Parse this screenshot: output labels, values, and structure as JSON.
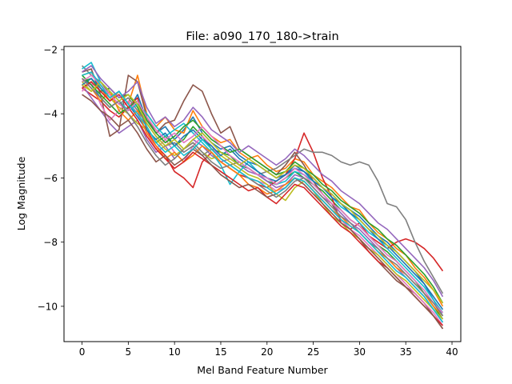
{
  "chart_data": {
    "type": "line",
    "title": "File: a090_170_180->train",
    "xlabel": "Mel Band Feature Number",
    "ylabel": "Log Magnitude",
    "xlim": [
      -1.95,
      40.95
    ],
    "ylim": [
      -11.1,
      -1.9
    ],
    "x_ticks": [
      0,
      5,
      10,
      15,
      20,
      25,
      30,
      35,
      40
    ],
    "y_ticks": [
      -2,
      -4,
      -6,
      -8,
      -10
    ],
    "x_tick_labels": [
      "0",
      "5",
      "10",
      "15",
      "20",
      "25",
      "30",
      "35",
      "40"
    ],
    "y_tick_labels": [
      "−2",
      "−4",
      "−6",
      "−8",
      "−10"
    ],
    "grid": false,
    "legend": "none",
    "colors": [
      "#1f77b4",
      "#ff7f0e",
      "#2ca02c",
      "#d62728",
      "#9467bd",
      "#8c564b",
      "#e377c2",
      "#7f7f7f",
      "#bcbd22",
      "#17becf"
    ],
    "x": [
      0,
      1,
      2,
      3,
      4,
      5,
      6,
      7,
      8,
      9,
      10,
      11,
      12,
      13,
      14,
      15,
      16,
      17,
      18,
      19,
      20,
      21,
      22,
      23,
      24,
      25,
      26,
      27,
      28,
      29,
      30,
      31,
      32,
      33,
      34,
      35,
      36,
      37,
      38,
      39
    ],
    "series": [
      {
        "values": [
          -2.9,
          -3.1,
          -3.5,
          -3.8,
          -3.6,
          -3.9,
          -3.4,
          -4.2,
          -4.6,
          -4.4,
          -4.8,
          -4.5,
          -4.1,
          -4.6,
          -4.9,
          -5.1,
          -5.0,
          -5.3,
          -5.5,
          -5.6,
          -5.8,
          -6.0,
          -5.9,
          -5.6,
          -5.8,
          -6.0,
          -6.3,
          -6.5,
          -6.8,
          -7.0,
          -7.2,
          -7.5,
          -7.8,
          -8.0,
          -8.3,
          -8.6,
          -8.9,
          -9.3,
          -9.8,
          -10.3
        ]
      },
      {
        "values": [
          -2.8,
          -2.7,
          -3.2,
          -3.6,
          -3.3,
          -3.7,
          -2.8,
          -4.0,
          -4.4,
          -4.1,
          -4.5,
          -4.6,
          -3.9,
          -4.4,
          -4.7,
          -4.9,
          -4.8,
          -5.2,
          -5.4,
          -5.3,
          -5.6,
          -5.8,
          -5.7,
          -5.4,
          -5.5,
          -5.9,
          -6.1,
          -6.3,
          -6.6,
          -6.9,
          -7.0,
          -7.4,
          -7.7,
          -7.9,
          -8.2,
          -8.4,
          -8.8,
          -9.1,
          -9.5,
          -10.0
        ]
      },
      {
        "values": [
          -3.0,
          -2.9,
          -3.3,
          -3.2,
          -3.5,
          -3.4,
          -3.8,
          -4.4,
          -4.9,
          -4.7,
          -5.0,
          -4.8,
          -4.4,
          -4.7,
          -5.1,
          -5.2,
          -5.3,
          -5.6,
          -5.7,
          -5.9,
          -6.1,
          -6.2,
          -6.0,
          -5.8,
          -6.0,
          -6.2,
          -6.4,
          -6.7,
          -7.0,
          -7.3,
          -7.5,
          -7.8,
          -8.1,
          -8.3,
          -8.6,
          -8.9,
          -9.2,
          -9.6,
          -10.0,
          -10.4
        ]
      },
      {
        "values": [
          -3.2,
          -3.4,
          -3.6,
          -3.9,
          -4.1,
          -3.8,
          -3.5,
          -4.5,
          -5.0,
          -5.3,
          -5.8,
          -6.0,
          -6.3,
          -5.5,
          -5.2,
          -5.5,
          -5.7,
          -5.9,
          -6.0,
          -6.2,
          -6.3,
          -6.1,
          -5.9,
          -5.4,
          -4.6,
          -5.2,
          -6.0,
          -6.6,
          -7.4,
          -7.6,
          -7.4,
          -7.8,
          -8.0,
          -8.2,
          -8.0,
          -7.9,
          -8.0,
          -8.2,
          -8.5,
          -8.9
        ]
      },
      {
        "values": [
          -3.1,
          -3.5,
          -3.9,
          -4.3,
          -4.6,
          -4.4,
          -4.2,
          -4.8,
          -5.2,
          -5.0,
          -5.4,
          -5.1,
          -4.8,
          -5.0,
          -5.3,
          -5.5,
          -5.4,
          -5.6,
          -5.8,
          -5.9,
          -6.1,
          -6.3,
          -6.2,
          -5.9,
          -6.0,
          -6.3,
          -6.6,
          -6.8,
          -7.1,
          -7.4,
          -7.6,
          -7.9,
          -8.2,
          -8.5,
          -8.8,
          -9.1,
          -9.4,
          -9.7,
          -10.1,
          -10.5
        ]
      },
      {
        "values": [
          -2.7,
          -2.6,
          -3.4,
          -4.7,
          -4.5,
          -2.8,
          -3.0,
          -4.1,
          -4.6,
          -4.3,
          -4.2,
          -3.6,
          -3.1,
          -3.3,
          -4.0,
          -4.6,
          -4.4,
          -5.1,
          -5.3,
          -5.5,
          -5.7,
          -5.9,
          -5.6,
          -5.2,
          -5.6,
          -6.1,
          -6.5,
          -6.8,
          -7.3,
          -7.6,
          -7.9,
          -8.3,
          -8.6,
          -8.9,
          -9.2,
          -9.4,
          -9.6,
          -9.9,
          -10.3,
          -10.7
        ]
      },
      {
        "values": [
          -3.3,
          -3.0,
          -3.7,
          -4.2,
          -3.9,
          -3.6,
          -4.0,
          -4.6,
          -5.1,
          -4.8,
          -5.2,
          -5.5,
          -5.0,
          -4.7,
          -5.0,
          -5.4,
          -5.6,
          -5.8,
          -6.0,
          -6.1,
          -6.2,
          -6.4,
          -6.3,
          -6.0,
          -6.2,
          -6.5,
          -6.7,
          -7.0,
          -7.3,
          -7.6,
          -7.8,
          -8.1,
          -8.4,
          -8.7,
          -9.0,
          -9.3,
          -9.6,
          -9.9,
          -10.2,
          -10.6
        ]
      },
      {
        "values": [
          -2.5,
          -2.8,
          -3.0,
          -3.4,
          -3.7,
          -3.5,
          -3.9,
          -4.3,
          -4.7,
          -5.0,
          -4.9,
          -5.2,
          -5.0,
          -5.3,
          -5.1,
          -5.4,
          -5.6,
          -5.5,
          -5.7,
          -5.9,
          -5.8,
          -5.7,
          -5.5,
          -5.3,
          -5.1,
          -5.2,
          -5.2,
          -5.3,
          -5.5,
          -5.6,
          -5.5,
          -5.6,
          -6.1,
          -6.8,
          -6.9,
          -7.3,
          -8.0,
          -8.6,
          -9.1,
          -9.6
        ]
      },
      {
        "values": [
          -3.0,
          -3.3,
          -3.1,
          -3.5,
          -3.8,
          -4.0,
          -4.3,
          -4.5,
          -4.8,
          -5.1,
          -5.3,
          -5.1,
          -4.9,
          -5.2,
          -5.4,
          -5.3,
          -5.5,
          -5.7,
          -5.9,
          -6.0,
          -6.2,
          -6.5,
          -6.7,
          -6.3,
          -6.1,
          -6.4,
          -6.8,
          -7.2,
          -7.4,
          -7.7,
          -7.9,
          -8.2,
          -8.4,
          -8.7,
          -9.0,
          -9.2,
          -9.5,
          -9.8,
          -10.1,
          -10.4
        ]
      },
      {
        "values": [
          -2.6,
          -2.4,
          -3.0,
          -3.3,
          -3.6,
          -3.9,
          -3.7,
          -4.0,
          -4.4,
          -4.7,
          -4.5,
          -4.3,
          -4.6,
          -4.9,
          -5.2,
          -5.6,
          -6.2,
          -5.8,
          -5.5,
          -5.8,
          -6.0,
          -6.2,
          -6.1,
          -5.8,
          -5.9,
          -6.1,
          -6.3,
          -6.6,
          -6.9,
          -7.1,
          -7.4,
          -7.7,
          -7.9,
          -8.2,
          -8.5,
          -8.8,
          -9.1,
          -9.4,
          -9.8,
          -10.2
        ]
      },
      {
        "values": [
          -3.1,
          -2.9,
          -3.2,
          -3.5,
          -3.3,
          -3.7,
          -4.1,
          -4.5,
          -4.8,
          -4.6,
          -5.0,
          -4.7,
          -4.5,
          -4.8,
          -5.0,
          -5.3,
          -5.1,
          -5.4,
          -5.6,
          -5.8,
          -6.0,
          -6.1,
          -5.9,
          -5.7,
          -5.8,
          -6.1,
          -6.3,
          -6.6,
          -6.8,
          -7.1,
          -7.3,
          -7.6,
          -7.9,
          -8.1,
          -8.4,
          -8.7,
          -9.0,
          -9.3,
          -9.7,
          -10.1
        ]
      },
      {
        "values": [
          -2.9,
          -3.2,
          -3.6,
          -3.3,
          -3.9,
          -4.2,
          -3.9,
          -4.6,
          -5.0,
          -5.4,
          -5.2,
          -5.5,
          -5.3,
          -5.0,
          -5.2,
          -5.5,
          -5.7,
          -5.9,
          -6.2,
          -6.3,
          -6.5,
          -6.4,
          -6.2,
          -6.0,
          -6.1,
          -6.4,
          -6.7,
          -7.0,
          -7.2,
          -7.5,
          -7.7,
          -8.0,
          -8.3,
          -8.5,
          -8.8,
          -9.0,
          -9.3,
          -9.6,
          -10.0,
          -10.3
        ]
      },
      {
        "values": [
          -2.8,
          -3.1,
          -3.4,
          -3.7,
          -4.0,
          -3.8,
          -3.6,
          -4.2,
          -4.6,
          -4.9,
          -4.7,
          -4.4,
          -4.2,
          -4.5,
          -4.8,
          -5.0,
          -5.2,
          -5.1,
          -5.3,
          -5.5,
          -5.7,
          -5.9,
          -5.8,
          -5.5,
          -5.7,
          -5.9,
          -6.2,
          -6.4,
          -6.7,
          -6.9,
          -7.1,
          -7.4,
          -7.6,
          -7.9,
          -8.1,
          -8.4,
          -8.7,
          -9.0,
          -9.4,
          -9.9
        ]
      },
      {
        "values": [
          -3.2,
          -3.0,
          -3.3,
          -3.6,
          -3.4,
          -3.8,
          -4.2,
          -4.7,
          -5.1,
          -5.4,
          -5.7,
          -5.5,
          -5.2,
          -5.4,
          -5.6,
          -5.8,
          -6.0,
          -6.2,
          -6.4,
          -6.3,
          -6.6,
          -6.8,
          -6.5,
          -6.2,
          -6.3,
          -6.6,
          -6.9,
          -7.2,
          -7.5,
          -7.7,
          -8.0,
          -8.3,
          -8.6,
          -8.8,
          -9.1,
          -9.4,
          -9.7,
          -10.0,
          -10.3,
          -10.6
        ]
      },
      {
        "values": [
          -2.7,
          -2.5,
          -2.9,
          -3.2,
          -3.5,
          -3.3,
          -3.0,
          -3.8,
          -4.3,
          -4.1,
          -4.4,
          -4.2,
          -3.8,
          -4.1,
          -4.5,
          -4.7,
          -4.9,
          -5.2,
          -5.0,
          -5.2,
          -5.4,
          -5.6,
          -5.4,
          -5.1,
          -5.3,
          -5.6,
          -5.9,
          -6.1,
          -6.4,
          -6.6,
          -6.8,
          -7.1,
          -7.4,
          -7.6,
          -7.9,
          -8.2,
          -8.5,
          -8.8,
          -9.2,
          -9.7
        ]
      },
      {
        "values": [
          -3.4,
          -3.6,
          -3.9,
          -4.1,
          -4.4,
          -4.2,
          -4.6,
          -5.1,
          -5.5,
          -5.3,
          -5.6,
          -5.4,
          -5.1,
          -5.3,
          -5.6,
          -5.9,
          -6.1,
          -6.3,
          -6.2,
          -6.4,
          -6.6,
          -6.5,
          -6.3,
          -6.0,
          -6.2,
          -6.5,
          -6.8,
          -7.1,
          -7.4,
          -7.6,
          -7.9,
          -8.2,
          -8.5,
          -8.8,
          -9.1,
          -9.4,
          -9.7,
          -10.0,
          -10.3,
          -10.7
        ]
      },
      {
        "values": [
          -3.0,
          -2.8,
          -3.1,
          -3.4,
          -3.7,
          -3.9,
          -3.6,
          -4.1,
          -4.5,
          -4.8,
          -4.6,
          -4.9,
          -4.7,
          -4.4,
          -4.7,
          -5.0,
          -5.3,
          -5.5,
          -5.7,
          -5.9,
          -6.0,
          -6.2,
          -6.0,
          -5.7,
          -5.9,
          -6.2,
          -6.5,
          -6.8,
          -7.0,
          -7.3,
          -7.5,
          -7.8,
          -8.1,
          -8.4,
          -8.6,
          -8.9,
          -9.2,
          -9.5,
          -9.9,
          -10.2
        ]
      },
      {
        "values": [
          -2.9,
          -3.2,
          -3.5,
          -3.8,
          -3.6,
          -4.0,
          -4.4,
          -4.9,
          -5.3,
          -5.6,
          -5.4,
          -5.1,
          -4.9,
          -5.2,
          -5.5,
          -5.7,
          -5.6,
          -5.8,
          -6.0,
          -6.2,
          -6.4,
          -6.6,
          -6.4,
          -6.1,
          -6.0,
          -6.3,
          -6.6,
          -6.9,
          -7.2,
          -7.4,
          -7.7,
          -8.0,
          -8.2,
          -8.5,
          -8.7,
          -9.0,
          -9.3,
          -9.6,
          -9.9,
          -10.3
        ]
      },
      {
        "values": [
          -3.1,
          -3.3,
          -3.0,
          -3.3,
          -3.6,
          -3.4,
          -3.7,
          -4.3,
          -4.7,
          -5.0,
          -4.8,
          -5.1,
          -4.8,
          -4.6,
          -4.9,
          -5.2,
          -5.4,
          -5.6,
          -5.4,
          -5.6,
          -5.8,
          -6.0,
          -5.8,
          -5.6,
          -5.7,
          -6.0,
          -6.3,
          -6.5,
          -6.8,
          -7.0,
          -7.3,
          -7.6,
          -7.8,
          -8.1,
          -8.3,
          -8.6,
          -8.9,
          -9.2,
          -9.5,
          -9.9
        ]
      },
      {
        "values": [
          -2.8,
          -2.7,
          -3.1,
          -3.5,
          -3.3,
          -3.7,
          -4.0,
          -4.4,
          -4.9,
          -5.2,
          -5.0,
          -5.3,
          -5.1,
          -4.8,
          -5.1,
          -5.4,
          -5.6,
          -5.8,
          -6.0,
          -6.1,
          -6.3,
          -6.5,
          -6.3,
          -6.0,
          -6.1,
          -6.4,
          -6.7,
          -7.0,
          -7.3,
          -7.5,
          -7.7,
          -8.0,
          -8.3,
          -8.6,
          -8.9,
          -9.1,
          -9.4,
          -9.7,
          -10.1,
          -10.5
        ]
      }
    ]
  }
}
